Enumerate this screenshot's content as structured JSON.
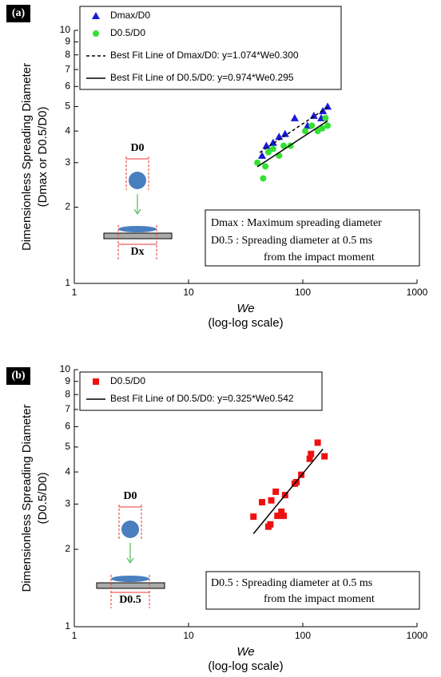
{
  "chart_data": [
    {
      "type": "scatter",
      "panel": "(a)",
      "xlabel": [
        "We",
        "(log-log scale)"
      ],
      "ylabel": [
        "Dimensionless Spreading Diameter",
        "(Dmax or D0.5/D0)"
      ],
      "log_x": true,
      "log_y": true,
      "xlim": [
        1,
        1000
      ],
      "xticks": [
        1,
        10,
        100,
        1000
      ],
      "ylim": [
        1,
        10
      ],
      "yticks": [
        1,
        2,
        3,
        4,
        5,
        6,
        7,
        8,
        9,
        10
      ],
      "series": [
        {
          "name": "Dmax/D0",
          "color": "#1a1ad6",
          "marker": "triangle",
          "x": [
            44,
            48,
            55,
            62,
            70,
            85,
            110,
            125,
            145,
            150,
            165
          ],
          "values": [
            3.2,
            3.5,
            3.6,
            3.8,
            3.9,
            4.5,
            4.2,
            4.6,
            4.5,
            4.8,
            5.0
          ]
        },
        {
          "name": "D0.5/D0",
          "color": "#33e033",
          "marker": "circle",
          "x": [
            40,
            45,
            47,
            50,
            55,
            62,
            68,
            78,
            105,
            120,
            135,
            148,
            158,
            165
          ],
          "values": [
            3.0,
            2.6,
            2.9,
            3.3,
            3.4,
            3.2,
            3.5,
            3.5,
            4.0,
            4.2,
            4.0,
            4.1,
            4.5,
            4.2
          ]
        },
        {
          "name": "Best Fit Line of Dmax/D0: y=1.074*We0.300",
          "color": "#000000",
          "marker": "line",
          "dash": true,
          "x": [
            42,
            165
          ],
          "values": [
            3.29,
            4.97
          ]
        },
        {
          "name": "Best Fit Line of D0.5/D0: y=0.974*We0.295",
          "color": "#000000",
          "marker": "line",
          "dash": false,
          "x": [
            40,
            165
          ],
          "values": [
            2.89,
            4.39
          ]
        }
      ],
      "annotations": [
        "D0",
        "Dx",
        "Dmax : Maximum spreading diameter",
        "D0.5 : Spreading diameter at 0.5 ms",
        "from the impact moment"
      ]
    },
    {
      "type": "scatter",
      "panel": "(b)",
      "xlabel": [
        "We",
        "(log-log scale)"
      ],
      "ylabel": [
        "Dimensionless Spreading Diameter",
        "(D0.5/D0)"
      ],
      "log_x": true,
      "log_y": true,
      "xlim": [
        1,
        1000
      ],
      "xticks": [
        1,
        10,
        100,
        1000
      ],
      "ylim": [
        1,
        10
      ],
      "yticks": [
        1,
        2,
        3,
        4,
        5,
        6,
        7,
        8,
        9,
        10
      ],
      "series": [
        {
          "name": "D0.5/D0",
          "color": "#ee1111",
          "marker": "square",
          "x": [
            37,
            44,
            50,
            52,
            53,
            58,
            60,
            65,
            68,
            70,
            85,
            88,
            97,
            115,
            118,
            135,
            155
          ],
          "values": [
            2.68,
            3.05,
            2.45,
            2.5,
            3.1,
            3.35,
            2.7,
            2.8,
            2.7,
            3.25,
            3.6,
            3.65,
            3.9,
            4.5,
            4.7,
            5.2,
            4.6
          ]
        },
        {
          "name": "Best Fit Line of D0.5/D0: y=0.325*We0.542",
          "color": "#000000",
          "marker": "line",
          "dash": false,
          "x": [
            37,
            150
          ],
          "values": [
            2.3,
            4.91
          ]
        }
      ],
      "annotations": [
        "D0",
        "D0.5",
        "D0.5 : Spreading diameter at 0.5 ms",
        "from the impact moment"
      ]
    }
  ]
}
